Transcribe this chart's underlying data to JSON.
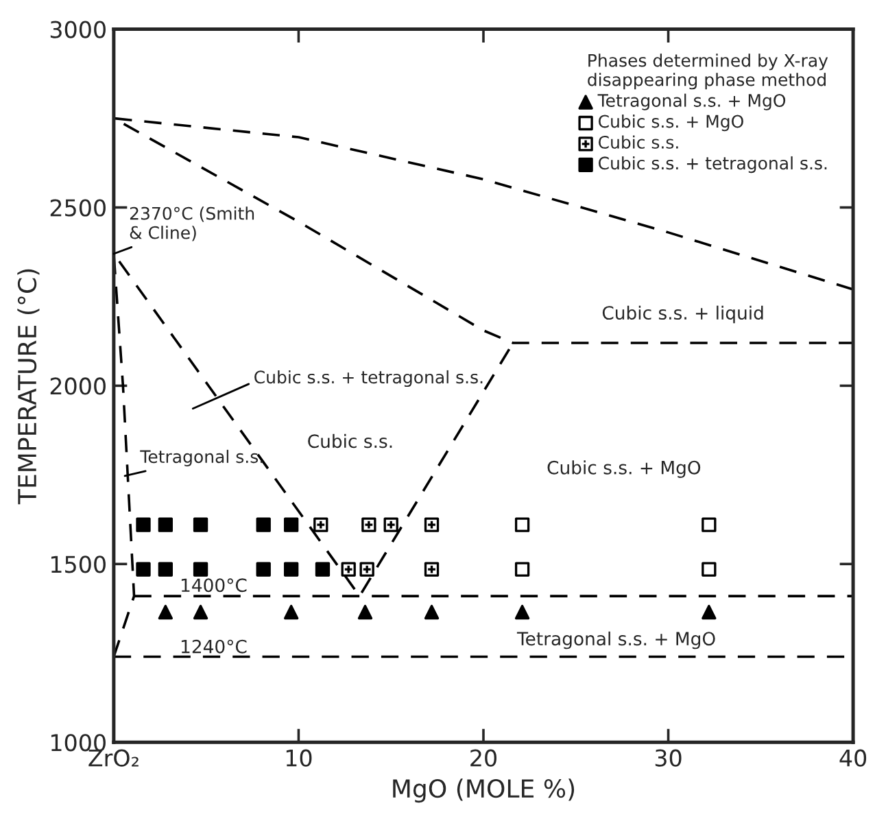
{
  "chart_data": {
    "type": "scatter",
    "xlabel": "MgO (MOLE %)",
    "ylabel": "TEMPERATURE (°C)",
    "legend_title": "Phases determined by X-ray\ndisappearing phase method",
    "xlim": [
      0,
      40
    ],
    "ylim": [
      1000,
      3000
    ],
    "xticks": [
      {
        "value": 0,
        "label": "ZrO₂"
      },
      10,
      20,
      30,
      40
    ],
    "yticks": [
      1000,
      1500,
      2000,
      2500,
      3000
    ],
    "grid": false,
    "legend": "top right",
    "series": [
      {
        "name": "Tetragonal s.s. + MgO",
        "marker": "triangle",
        "color": "#000000",
        "x": [
          2.8,
          4.7,
          9.6,
          13.6,
          17.2,
          22.1,
          32.2
        ],
        "values": [
          1365,
          1365,
          1365,
          1365,
          1365,
          1365,
          1365
        ]
      },
      {
        "name": "Cubic s.s. + MgO",
        "marker": "square",
        "color": "#ffffff",
        "x": [
          22.1,
          32.2,
          22.1,
          32.2
        ],
        "values": [
          1610,
          1610,
          1485,
          1485
        ]
      },
      {
        "name": "Cubic s.s.",
        "marker": "cross",
        "color": "#ffffff",
        "x": [
          11.2,
          13.8,
          15.0,
          17.2,
          12.7,
          13.7,
          17.2
        ],
        "values": [
          1610,
          1610,
          1610,
          1610,
          1485,
          1485,
          1485
        ]
      },
      {
        "name": "Cubic s.s. + tetragonal s.s.",
        "marker": "square",
        "color": "#000000",
        "x": [
          1.6,
          2.8,
          4.7,
          8.1,
          9.6,
          1.6,
          2.8,
          4.7,
          8.1,
          9.6,
          11.3
        ],
        "values": [
          1610,
          1610,
          1610,
          1610,
          1610,
          1485,
          1485,
          1485,
          1485,
          1485,
          1485
        ]
      },
      {
        "type": "line",
        "line_style": "dashed",
        "marker": "none",
        "color": "#000000",
        "x": [
          40,
          30,
          20,
          10,
          0,
          10,
          20,
          21.6,
          40
        ],
        "values": [
          2270,
          2430,
          2579,
          2697,
          2750,
          2460,
          2155,
          2120,
          2120
        ]
      },
      {
        "type": "line",
        "line_style": "dashed",
        "marker": "none",
        "color": "#000000",
        "x": [
          0,
          1.1,
          0.5,
          0,
          13.3,
          21.6
        ],
        "values": [
          1240,
          1410,
          2000,
          2370,
          1410,
          2120
        ]
      },
      {
        "type": "line",
        "line_style": "dashed",
        "marker": "none",
        "color": "#000000",
        "x": [
          1.1,
          40
        ],
        "values": [
          1410,
          1410
        ]
      },
      {
        "type": "line",
        "line_style": "dashed",
        "marker": "none",
        "color": "#000000",
        "x": [
          0,
          40
        ],
        "values": [
          1240,
          1240
        ]
      }
    ],
    "annotations": [
      {
        "text": "2370°C (Smith\n& Cline)",
        "x": 0,
        "y": 2370
      },
      "Cubic s.s. + tetragonal s.s.",
      {
        "text": "Tetragonal s.s.",
        "x": 0.6,
        "y": 1747
      },
      "Cubic s.s.",
      "Cubic s.s. + liquid",
      "Cubic s.s. + MgO",
      "1400°C",
      "1240°C",
      "Tetragonal s.s. + MgO"
    ]
  }
}
